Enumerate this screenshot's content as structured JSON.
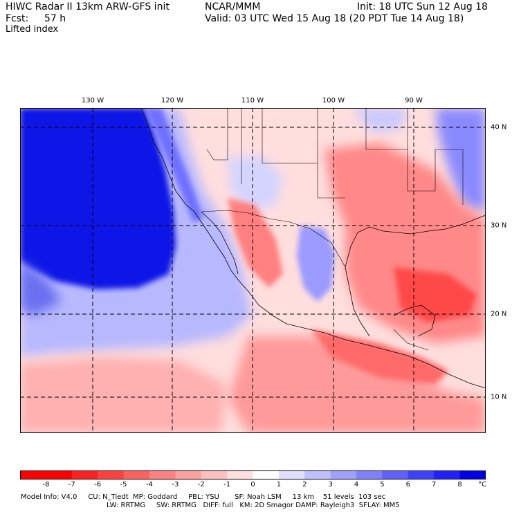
{
  "header": {
    "line1_left": "HIWC Radar II 13km ARW-GFS init",
    "line1_mid": "NCAR/MMM",
    "line1_right": "Init: 18 UTC Sun 12 Aug 18",
    "fcst_label": "Fcst:",
    "fcst_value": "57 h",
    "valid": "Valid: 03 UTC Wed 15 Aug 18 (20 PDT Tue 14 Aug 18)",
    "field": "Lifted index"
  },
  "axes": {
    "lon_labels": [
      "130 W",
      "120 W",
      "110 W",
      "100 W",
      "90 W"
    ],
    "lat_labels": [
      "40 N",
      "30 N",
      "20 N",
      "10 N"
    ]
  },
  "colorbar": {
    "labels": [
      "-8",
      "-7",
      "-6",
      "-5",
      "-4",
      "-3",
      "-2",
      "-1",
      "0",
      "1",
      "2",
      "3",
      "4",
      "5",
      "6",
      "7",
      "8"
    ],
    "unit": "°C",
    "colors": [
      "#ff0000",
      "#ff2020",
      "#ff4040",
      "#ff6060",
      "#ff8080",
      "#ff9f9f",
      "#ffbfbf",
      "#ffdfdf",
      "#ffffff",
      "#dfdfff",
      "#bfbfff",
      "#9f9fff",
      "#8080ff",
      "#6060ff",
      "#4040ff",
      "#2020ff",
      "#0000e6"
    ]
  },
  "footer": {
    "line1": "Model Info: V4.0     CU: N_Tiedt  MP: Goddard     PBL: YSU       SF: Noah LSM     13 km    51 levels  103 sec",
    "line2": "LW: RRTMG     SW: RRTMG   DIFF: full   KM: 2D Smagor DAMP: Rayleigh3  SFLAY: MM5"
  },
  "map": {
    "ocean_color": "#0a14e6",
    "land_color": "#ffd6d6",
    "warm_color": "#ff7a7a",
    "gridline_color": "#000000"
  }
}
